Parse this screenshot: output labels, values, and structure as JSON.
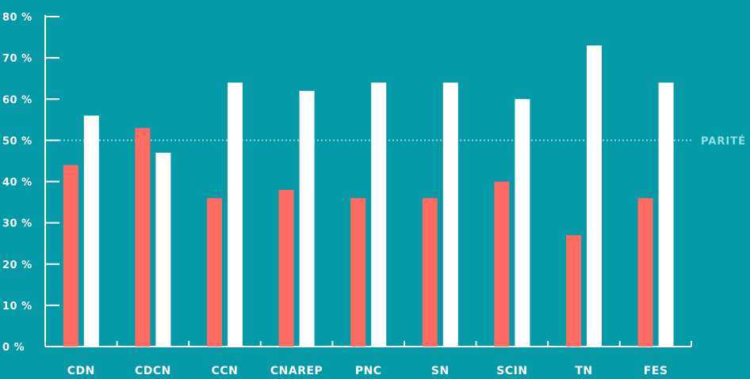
{
  "chart_data": {
    "type": "bar",
    "categories": [
      "CDN",
      "CDCN",
      "CCN",
      "CNAREP",
      "PNC",
      "SN",
      "SCIN",
      "TN",
      "FES"
    ],
    "series": [
      {
        "values": [
          44,
          53,
          36,
          38,
          36,
          36,
          40,
          27,
          36
        ],
        "color": "#ff6b61"
      },
      {
        "values": [
          56,
          47,
          64,
          62,
          64,
          64,
          60,
          73,
          64
        ],
        "color": "#ffffff"
      }
    ],
    "ylim": [
      0,
      80
    ],
    "yticks": [
      0,
      10,
      20,
      30,
      40,
      50,
      60,
      70,
      80
    ],
    "ytick_labels": [
      "0 %",
      "10 %",
      "20 %",
      "30 %",
      "40 %",
      "50 %",
      "60 %",
      "70 %",
      "80 %"
    ],
    "reference_line": {
      "value": 50,
      "label": "PARITÉ",
      "style": "dotted",
      "color": "#8fdfe6"
    },
    "grid": false,
    "legend": "none",
    "title": "",
    "xlabel": "",
    "ylabel": ""
  }
}
